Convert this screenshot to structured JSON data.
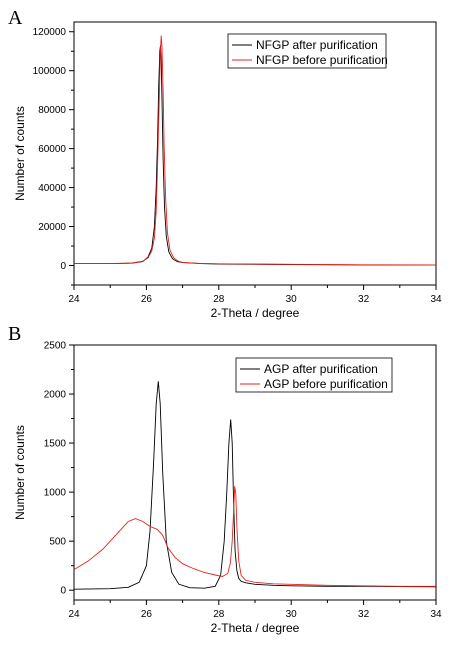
{
  "chart_data": [
    {
      "panel": "A",
      "type": "line",
      "xlabel": "2-Theta / degree",
      "ylabel": "Number of counts",
      "xlim": [
        24,
        34
      ],
      "ylim": [
        -10000,
        125000
      ],
      "xticks": [
        24,
        26,
        28,
        30,
        32,
        34
      ],
      "xtick_labels": [
        "24",
        "26",
        "28",
        "30",
        "32",
        "34"
      ],
      "yticks": [
        0,
        20000,
        40000,
        60000,
        80000,
        100000,
        120000
      ],
      "ytick_labels": [
        "0",
        "20000",
        "40000",
        "60000",
        "80000",
        "100000",
        "120000"
      ],
      "legend_position": "top-right",
      "series": [
        {
          "name": "NFGP after purification",
          "color": "#000000",
          "x": [
            24.0,
            25.0,
            25.6,
            25.9,
            26.05,
            26.15,
            26.22,
            26.27,
            26.31,
            26.34,
            26.37,
            26.39,
            26.41,
            26.43,
            26.46,
            26.5,
            26.55,
            26.62,
            26.72,
            26.85,
            27.0,
            27.5,
            28.0,
            30.0,
            32.0,
            34.0
          ],
          "y": [
            1000,
            1000,
            1200,
            2000,
            4500,
            9000,
            20000,
            40000,
            65000,
            92000,
            110000,
            113000,
            105000,
            85000,
            55000,
            30000,
            15000,
            7000,
            3500,
            2000,
            1500,
            1000,
            800,
            500,
            300,
            200
          ]
        },
        {
          "name": "NFGP before purification",
          "color": "#e8231e",
          "x": [
            24.0,
            25.0,
            25.6,
            25.9,
            26.05,
            26.15,
            26.22,
            26.27,
            26.31,
            26.35,
            26.38,
            26.41,
            26.43,
            26.46,
            26.49,
            26.53,
            26.58,
            26.65,
            26.75,
            26.88,
            27.0,
            27.5,
            28.0,
            30.0,
            32.0,
            34.0
          ],
          "y": [
            1000,
            1000,
            1300,
            2200,
            4000,
            7500,
            14000,
            28000,
            52000,
            82000,
            107000,
            118000,
            112000,
            90000,
            62000,
            35000,
            17000,
            8000,
            4000,
            2200,
            1600,
            1100,
            900,
            600,
            350,
            250
          ]
        }
      ]
    },
    {
      "panel": "B",
      "type": "line",
      "xlabel": "2-Theta / degree",
      "ylabel": "Number of counts",
      "xlim": [
        24,
        34
      ],
      "ylim": [
        -100,
        2500
      ],
      "xticks": [
        24,
        26,
        28,
        30,
        32,
        34
      ],
      "xtick_labels": [
        "24",
        "26",
        "28",
        "30",
        "32",
        "34"
      ],
      "yticks": [
        0,
        500,
        1000,
        1500,
        2000,
        2500
      ],
      "ytick_labels": [
        "0",
        "500",
        "1000",
        "1500",
        "2000",
        "2500"
      ],
      "legend_position": "top-right",
      "series": [
        {
          "name": "AGP after purification",
          "color": "#000000",
          "x": [
            24.0,
            25.0,
            25.5,
            25.8,
            26.0,
            26.1,
            26.2,
            26.27,
            26.33,
            26.38,
            26.45,
            26.55,
            26.7,
            26.9,
            27.2,
            27.6,
            27.9,
            28.05,
            28.15,
            28.22,
            28.28,
            28.33,
            28.37,
            28.41,
            28.45,
            28.5,
            28.55,
            28.62,
            28.75,
            29.0,
            29.5,
            30.0,
            31.0,
            32.0,
            33.0,
            34.0
          ],
          "y": [
            10,
            15,
            30,
            80,
            250,
            600,
            1300,
            1900,
            2130,
            1900,
            1200,
            500,
            180,
            60,
            25,
            20,
            40,
            150,
            500,
            1000,
            1500,
            1740,
            1500,
            900,
            400,
            200,
            120,
            90,
            75,
            60,
            50,
            45,
            40,
            40,
            38,
            35
          ]
        },
        {
          "name": "AGP before purification",
          "color": "#e8231e",
          "x": [
            24.0,
            24.4,
            24.8,
            25.2,
            25.5,
            25.7,
            25.9,
            26.1,
            26.3,
            26.45,
            26.6,
            26.8,
            27.0,
            27.3,
            27.6,
            27.9,
            28.1,
            28.25,
            28.32,
            28.37,
            28.41,
            28.44,
            28.47,
            28.5,
            28.55,
            28.62,
            28.75,
            29.0,
            29.5,
            30.0,
            30.5,
            31.0,
            32.0,
            33.0,
            34.0
          ],
          "y": [
            210,
            300,
            420,
            580,
            700,
            730,
            700,
            650,
            620,
            560,
            430,
            330,
            270,
            220,
            180,
            155,
            140,
            170,
            280,
            500,
            800,
            1060,
            980,
            640,
            300,
            150,
            100,
            80,
            65,
            60,
            55,
            50,
            45,
            40,
            40
          ]
        }
      ]
    }
  ]
}
